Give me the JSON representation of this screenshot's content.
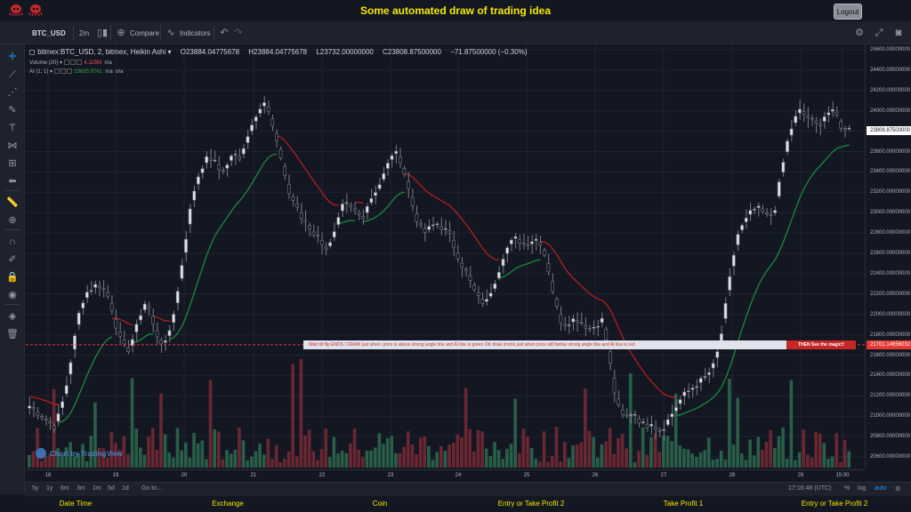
{
  "header": {
    "title": "Some automated draw of trading idea",
    "logout_label": "Logout",
    "logo_icons": [
      "octopus-logo",
      "octopus-logo"
    ]
  },
  "toolbar": {
    "symbol": "BTC_USD",
    "interval": "2m",
    "compare_label": "Compare",
    "indicators_label": "Indicators"
  },
  "legend": {
    "symbol_line": "bitmex:BTC_USD, 2, bitmex, Heikin Ashi",
    "open": "O23884.04775678",
    "high": "H23884.04775678",
    "low": "L23732.00000000",
    "close": "C23808.87500000",
    "change": "−71.87500000 (−0.30%)",
    "volume_label": "Volume (20)",
    "volume_value": "4.115M",
    "volume_na": "n/a",
    "ai_label": "AI (1, 1)",
    "ai_value": "23655.9761",
    "ai_na1": "n/a",
    "ai_na2": "n/a"
  },
  "banner": {
    "text": "Wait till flip ENDS  !   DRAW just when:  price is above strong angle line and AI line is green       OK        draw shorts just when price still below strong angle line and AI line is red",
    "end_text": "THEN See the magic!!"
  },
  "price_axis": {
    "labels": [
      "24600.00000000",
      "24400.00000000",
      "24200.00000000",
      "24000.00000000",
      "23800.00000000",
      "23600.00000000",
      "23400.00000000",
      "23200.00000000",
      "23000.00000000",
      "22800.00000000",
      "22600.00000000",
      "22400.00000000",
      "22200.00000000",
      "22000.00000000",
      "21800.00000000",
      "21600.00000000",
      "21400.00000000",
      "21200.00000000",
      "21000.00000000",
      "20800.00000000",
      "20600.00000000"
    ],
    "current_price": "23808.87500000",
    "line_price": "21701.14656032"
  },
  "time_axis": {
    "labels": [
      "18",
      "19",
      "20",
      "21",
      "22",
      "23",
      "24",
      "25",
      "26",
      "27",
      "28",
      "29",
      "15:00"
    ]
  },
  "watermark": "Chart by TradingView",
  "bottom": {
    "ranges": [
      "5y",
      "1y",
      "6m",
      "3m",
      "1m",
      "5d",
      "1d"
    ],
    "goto": "Go to…",
    "time": "17:16:48 (UTC)",
    "percent": "%",
    "log": "log",
    "auto": "auto"
  },
  "footer": {
    "columns": [
      "Date Time",
      "Exchange",
      "Coin",
      "Entry or Take Profit 2",
      "Take Profit 1",
      "Entry or Take Profit 2"
    ]
  },
  "colors": {
    "background": "#131722",
    "title_yellow": "#f5e900",
    "candle_white": "#e0e3eb",
    "candle_outline": "#787b86",
    "ai_green": "#1b8a3a",
    "ai_red": "#b71c1c",
    "volume_green": "#2e6b4f",
    "volume_red": "#7a2a35",
    "signal_line": "#e53935"
  },
  "chart_data": {
    "type": "candlestick",
    "title": "bitmex:BTC_USD, 2, bitmex, Heikin Ashi",
    "ylim": [
      20500,
      24700
    ],
    "x_ticks": [
      "18",
      "19",
      "20",
      "21",
      "22",
      "23",
      "24",
      "25",
      "26",
      "27",
      "28",
      "29",
      "15:00"
    ],
    "close_path": [
      21100,
      21050,
      21000,
      20950,
      20900,
      21050,
      21300,
      21650,
      22000,
      22200,
      22250,
      22300,
      22250,
      22150,
      21900,
      21700,
      21650,
      21800,
      22000,
      22150,
      21900,
      21750,
      21700,
      21900,
      22200,
      22600,
      23000,
      23300,
      23450,
      23550,
      23500,
      23400,
      23450,
      23600,
      23500,
      23700,
      23850,
      24000,
      24100,
      23950,
      23700,
      23500,
      23200,
      23100,
      22950,
      22900,
      22800,
      22750,
      22650,
      22700,
      22900,
      23100,
      23050,
      23000,
      22950,
      23100,
      23200,
      23300,
      23450,
      23600,
      23550,
      23350,
      23100,
      22900,
      22800,
      22850,
      22900,
      22850,
      22800,
      22650,
      22500,
      22400,
      22250,
      22150,
      22100,
      22250,
      22400,
      22600,
      22700,
      22750,
      22700,
      22700,
      22750,
      22700,
      22500,
      22200,
      21950,
      21900,
      21950,
      21950,
      21900,
      21850,
      21900,
      21950,
      21600,
      21200,
      21000,
      21000,
      21050,
      20950,
      20900,
      20950,
      20850,
      20900,
      21000,
      21100,
      21200,
      21250,
      21300,
      21350,
      21400,
      21500,
      21700,
      22100,
      22500,
      22800,
      22900,
      23000,
      23050,
      23000,
      22950,
      23050,
      23400,
      23700,
      23900,
      24000,
      23950,
      23900,
      23850,
      23950,
      24000,
      23950,
      23800,
      23850
    ]
  }
}
